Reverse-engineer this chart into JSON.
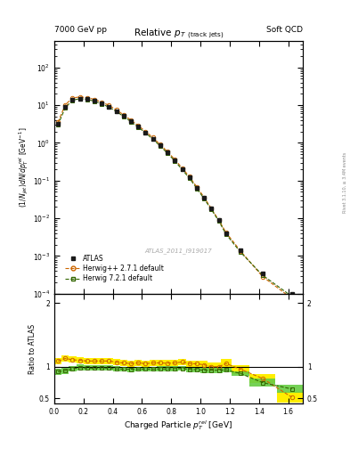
{
  "header_left": "7000 GeV pp",
  "header_right": "Soft QCD",
  "watermark": "ATLAS_2011_I919017",
  "right_label": "Rivet 3.1.10, ≥ 3.4M events",
  "xlabel": "Charged Particle $p_T^{rel}$ [GeV]",
  "ylabel_main": "$(1/N_{jet})dN/dp_T^{rel}$ [GeV$^{-1}$]",
  "ylabel_ratio": "Ratio to ATLAS",
  "xlim": [
    0.0,
    1.7
  ],
  "ylim_main": [
    0.0001,
    500
  ],
  "ylim_ratio": [
    0.42,
    2.15
  ],
  "atlas_x": [
    0.025,
    0.075,
    0.125,
    0.175,
    0.225,
    0.275,
    0.325,
    0.375,
    0.425,
    0.475,
    0.525,
    0.575,
    0.625,
    0.675,
    0.725,
    0.775,
    0.825,
    0.875,
    0.925,
    0.975,
    1.025,
    1.075,
    1.125,
    1.175,
    1.275,
    1.425,
    1.625
  ],
  "atlas_y": [
    3.2,
    9.0,
    14.0,
    15.0,
    14.5,
    13.0,
    11.0,
    9.0,
    7.0,
    5.2,
    3.8,
    2.7,
    1.9,
    1.3,
    0.85,
    0.55,
    0.34,
    0.2,
    0.12,
    0.065,
    0.035,
    0.018,
    0.009,
    0.004,
    0.0014,
    0.00035,
    0.0001
  ],
  "atlas_yerr": [
    0.15,
    0.3,
    0.4,
    0.4,
    0.4,
    0.35,
    0.3,
    0.25,
    0.2,
    0.15,
    0.1,
    0.08,
    0.055,
    0.04,
    0.025,
    0.016,
    0.01,
    0.006,
    0.0035,
    0.002,
    0.001,
    0.0005,
    0.00025,
    0.0001,
    4e-05,
    1e-05,
    3e-06
  ],
  "hw271_x": [
    0.025,
    0.075,
    0.125,
    0.175,
    0.225,
    0.275,
    0.325,
    0.375,
    0.425,
    0.475,
    0.525,
    0.575,
    0.625,
    0.675,
    0.725,
    0.775,
    0.825,
    0.875,
    0.925,
    0.975,
    1.025,
    1.075,
    1.125,
    1.175,
    1.275,
    1.425,
    1.625
  ],
  "hw271_y": [
    3.5,
    10.2,
    15.5,
    16.5,
    15.8,
    14.2,
    12.0,
    9.8,
    7.5,
    5.5,
    4.0,
    2.85,
    2.0,
    1.38,
    0.9,
    0.58,
    0.36,
    0.215,
    0.126,
    0.068,
    0.036,
    0.018,
    0.009,
    0.0042,
    0.00135,
    0.000285,
    7.5e-05
  ],
  "hw271_ratio": [
    1.09,
    1.13,
    1.11,
    1.1,
    1.09,
    1.09,
    1.09,
    1.09,
    1.07,
    1.06,
    1.05,
    1.06,
    1.05,
    1.06,
    1.06,
    1.055,
    1.06,
    1.075,
    1.05,
    1.046,
    1.03,
    1.0,
    1.0,
    1.05,
    0.96,
    0.815,
    0.52
  ],
  "hw721_x": [
    0.025,
    0.075,
    0.125,
    0.175,
    0.225,
    0.275,
    0.325,
    0.375,
    0.425,
    0.475,
    0.525,
    0.575,
    0.625,
    0.675,
    0.725,
    0.775,
    0.825,
    0.875,
    0.925,
    0.975,
    1.025,
    1.075,
    1.125,
    1.175,
    1.275,
    1.425,
    1.625
  ],
  "hw721_y": [
    2.95,
    8.5,
    13.5,
    14.8,
    14.2,
    12.7,
    10.8,
    8.8,
    6.75,
    5.0,
    3.65,
    2.6,
    1.83,
    1.25,
    0.82,
    0.53,
    0.33,
    0.195,
    0.115,
    0.062,
    0.033,
    0.017,
    0.0085,
    0.0038,
    0.00125,
    0.00031,
    8.5e-05
  ],
  "hw721_ratio": [
    0.92,
    0.94,
    0.965,
    0.987,
    0.979,
    0.977,
    0.982,
    0.978,
    0.964,
    0.962,
    0.96,
    0.963,
    0.963,
    0.962,
    0.965,
    0.964,
    0.97,
    0.975,
    0.958,
    0.954,
    0.943,
    0.944,
    0.944,
    0.95,
    0.893,
    0.75,
    0.65
  ],
  "color_atlas": "#1a1a1a",
  "color_hw271": "#cc6600",
  "color_hw721": "#336600",
  "color_hw721_band": "#66cc44",
  "color_hw271_band": "#ffee00",
  "band_hw721_lo": [
    0.87,
    0.89,
    0.92,
    0.945,
    0.935,
    0.935,
    0.94,
    0.937,
    0.923,
    0.921,
    0.919,
    0.923,
    0.923,
    0.921,
    0.924,
    0.923,
    0.93,
    0.935,
    0.917,
    0.913,
    0.903,
    0.903,
    0.903,
    0.911,
    0.853,
    0.69,
    0.59
  ],
  "band_hw721_hi": [
    0.97,
    0.99,
    1.015,
    1.035,
    1.023,
    1.019,
    1.024,
    1.019,
    1.005,
    1.003,
    1.001,
    1.003,
    1.003,
    1.003,
    1.006,
    1.005,
    1.01,
    1.015,
    0.999,
    0.995,
    0.983,
    0.985,
    0.985,
    0.989,
    0.933,
    0.81,
    0.71
  ],
  "band_hw271_lo": [
    1.04,
    1.08,
    1.06,
    1.05,
    1.04,
    1.04,
    1.04,
    1.04,
    1.02,
    1.01,
    1.0,
    1.01,
    1.0,
    1.01,
    1.01,
    1.005,
    1.01,
    1.025,
    1.0,
    0.996,
    0.97,
    0.94,
    0.94,
    0.98,
    0.89,
    0.74,
    0.44
  ],
  "band_hw271_hi": [
    1.14,
    1.18,
    1.16,
    1.15,
    1.14,
    1.14,
    1.14,
    1.14,
    1.12,
    1.11,
    1.1,
    1.11,
    1.1,
    1.11,
    1.11,
    1.105,
    1.11,
    1.125,
    1.1,
    1.096,
    1.09,
    1.06,
    1.06,
    1.12,
    1.03,
    0.89,
    0.6
  ]
}
